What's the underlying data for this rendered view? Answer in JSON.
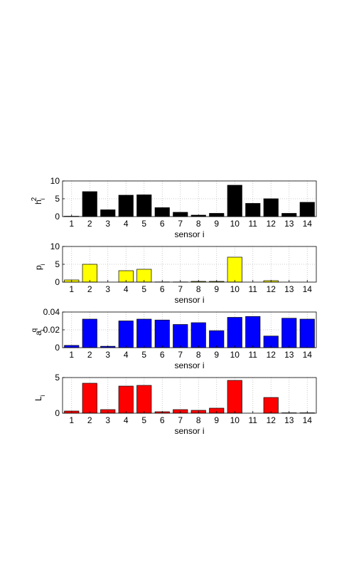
{
  "chart_data": [
    {
      "type": "bar",
      "ylabel": "h",
      "ylabel_sub": "i",
      "ylabel_sup": "2",
      "xlabel": "sensor i",
      "categories": [
        "1",
        "2",
        "3",
        "4",
        "5",
        "6",
        "7",
        "8",
        "9",
        "10",
        "11",
        "12",
        "13",
        "14"
      ],
      "values": [
        0.1,
        7,
        1.9,
        6,
        6.1,
        2.5,
        1.2,
        0.4,
        0.9,
        8.8,
        3.7,
        5,
        0.9,
        4
      ],
      "color": "#000000",
      "ylim": [
        0,
        10
      ],
      "yticks": [
        0,
        5,
        10
      ],
      "grid": true
    },
    {
      "type": "bar",
      "ylabel": "p",
      "ylabel_sub": "i",
      "xlabel": "sensor i",
      "categories": [
        "1",
        "2",
        "3",
        "4",
        "5",
        "6",
        "7",
        "8",
        "9",
        "10",
        "11",
        "12",
        "13",
        "14"
      ],
      "values": [
        0.6,
        5,
        0,
        3.2,
        3.6,
        0.05,
        0.05,
        0.2,
        0.2,
        7,
        0,
        0.4,
        0,
        0
      ],
      "color": "#ffff00",
      "ylim": [
        0,
        10
      ],
      "yticks": [
        0,
        5,
        10
      ],
      "grid": true
    },
    {
      "type": "bar",
      "ylabel": "a",
      "ylabel_sub": "i",
      "ylabel_sup": "q",
      "xlabel": "sensor i",
      "categories": [
        "1",
        "2",
        "3",
        "4",
        "5",
        "6",
        "7",
        "8",
        "9",
        "10",
        "11",
        "12",
        "13",
        "14"
      ],
      "values": [
        0.0025,
        0.032,
        0.0015,
        0.03,
        0.032,
        0.031,
        0.026,
        0.028,
        0.019,
        0.034,
        0.035,
        0.013,
        0.033,
        0.032
      ],
      "color": "#0000ff",
      "ylim": [
        0,
        0.04
      ],
      "yticks": [
        0,
        0.02,
        0.04
      ],
      "grid": true
    },
    {
      "type": "bar",
      "ylabel": "L",
      "ylabel_sub": "i",
      "xlabel": "sensor i",
      "categories": [
        "1",
        "2",
        "3",
        "4",
        "5",
        "6",
        "7",
        "8",
        "9",
        "10",
        "11",
        "12",
        "13",
        "14"
      ],
      "values": [
        0.3,
        4.2,
        0.5,
        3.8,
        3.9,
        0.2,
        0.5,
        0.4,
        0.7,
        4.6,
        0,
        2.2,
        0.05,
        0.05
      ],
      "color": "#ff0000",
      "ylim": [
        0,
        5
      ],
      "yticks": [
        0,
        5
      ],
      "grid": true
    }
  ]
}
